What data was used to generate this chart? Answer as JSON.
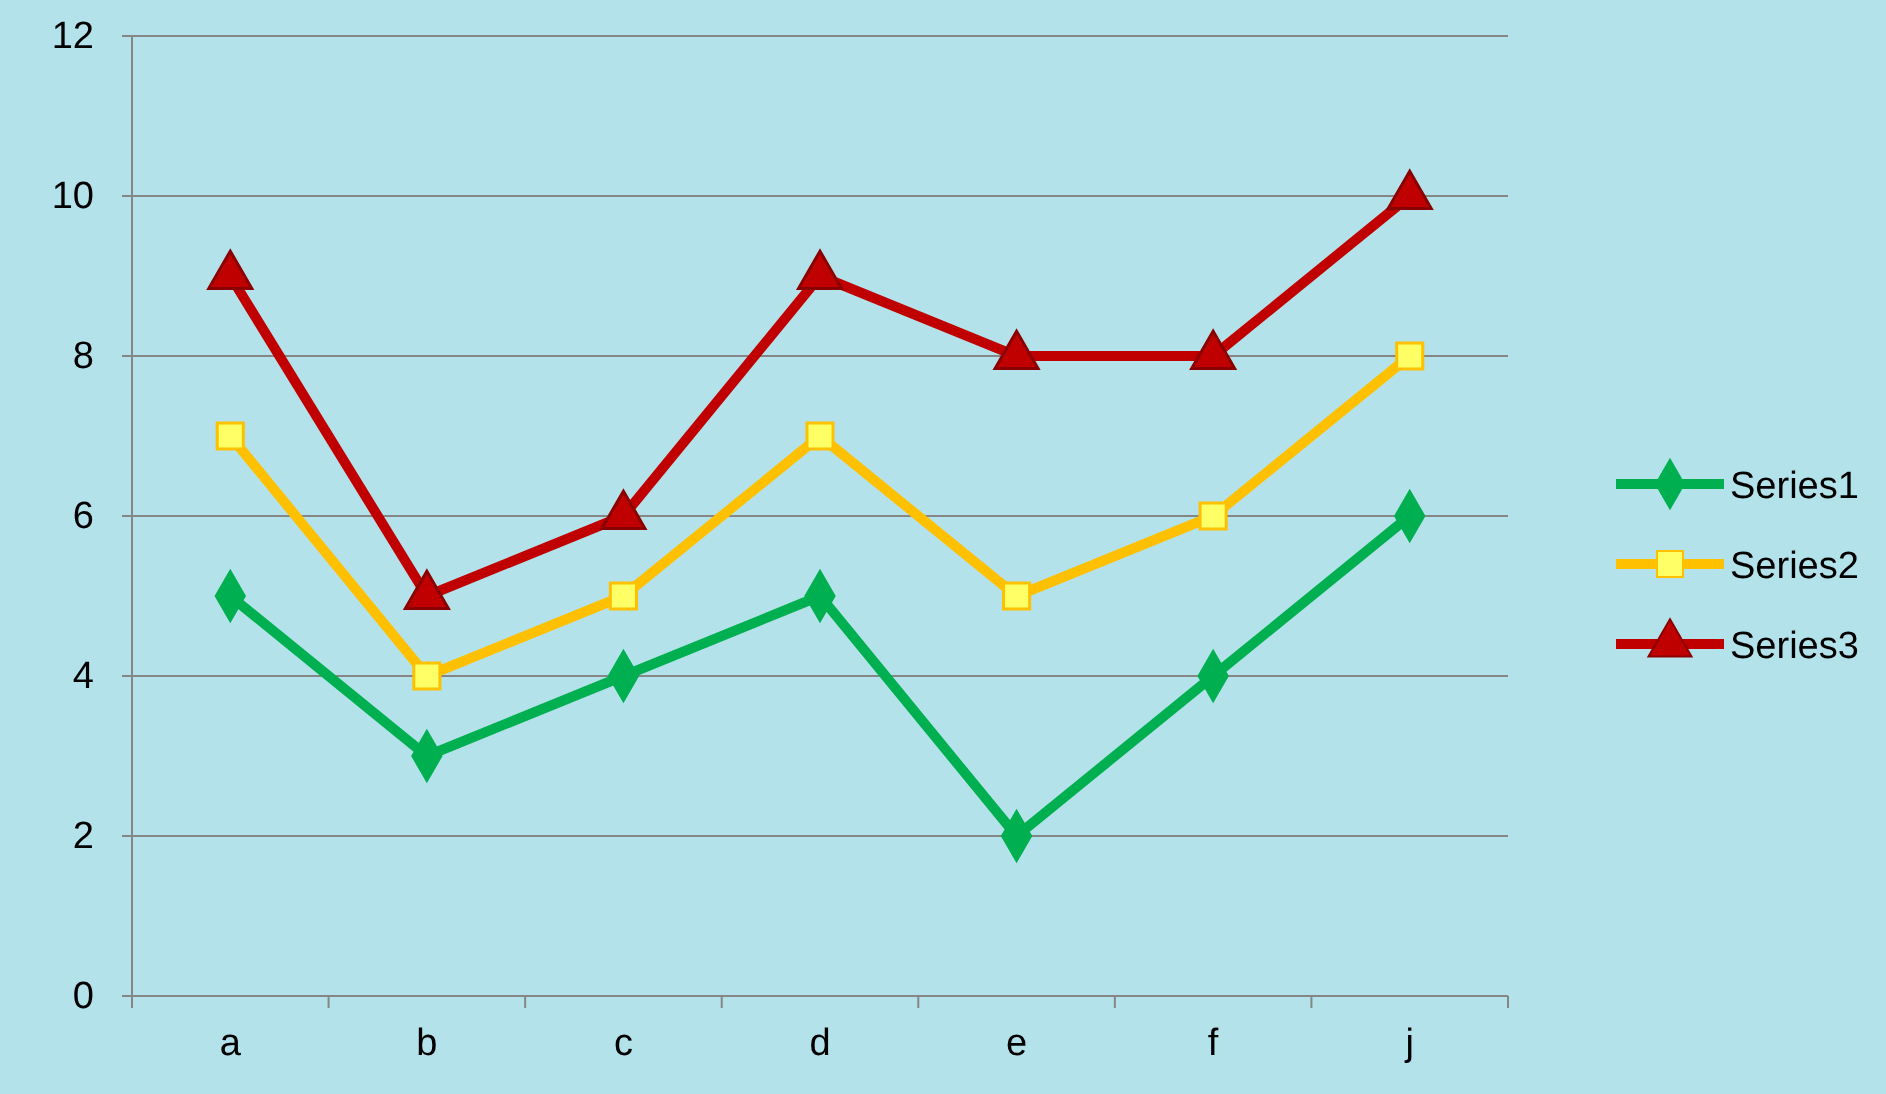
{
  "chart_data": {
    "type": "line",
    "categories": [
      "a",
      "b",
      "c",
      "d",
      "e",
      "f",
      "j"
    ],
    "series": [
      {
        "name": "Series1",
        "color": "#00b050",
        "marker": "diamond",
        "values": [
          5,
          3,
          4,
          5,
          2,
          4,
          6
        ]
      },
      {
        "name": "Series2",
        "color": "#ffc000",
        "marker": "square",
        "values": [
          7,
          4,
          5,
          7,
          5,
          6,
          8
        ]
      },
      {
        "name": "Series3",
        "color": "#c00000",
        "marker": "triangle",
        "values": [
          9,
          5,
          6,
          9,
          8,
          8,
          10
        ]
      }
    ],
    "ylim": [
      0,
      12
    ],
    "yticks": [
      0,
      2,
      4,
      6,
      8,
      10,
      12
    ],
    "grid": "y",
    "legend": "right"
  }
}
